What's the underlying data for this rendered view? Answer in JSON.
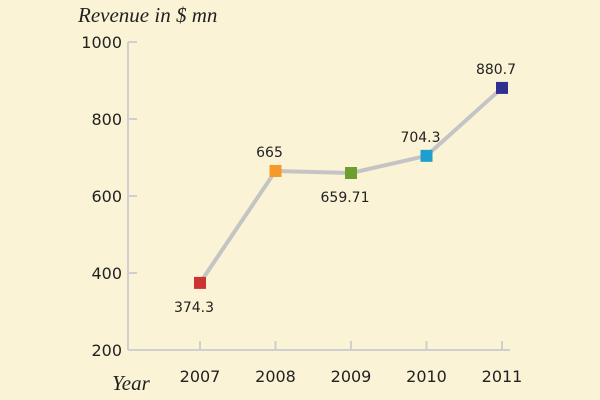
{
  "chart_data": {
    "type": "line",
    "ylabel": "Revenue in $ mn",
    "xlabel": "Year",
    "categories": [
      "2007",
      "2008",
      "2009",
      "2010",
      "2011"
    ],
    "series": [
      {
        "values": [
          374.3,
          665,
          659.71,
          704.3,
          880.7
        ],
        "labels": [
          "374.3",
          "665",
          "659.71",
          "704.3",
          "880.7"
        ],
        "line_color": "#c4c4c4",
        "marker_colors": [
          "#cc3333",
          "#f59a2a",
          "#6d9f2e",
          "#1f9fcf",
          "#2e3192"
        ]
      }
    ],
    "ylim": [
      200,
      1000
    ],
    "yticks": [
      200,
      400,
      600,
      800,
      1000
    ],
    "grid": false,
    "legend": false,
    "colors": {
      "background": "#fbf3d6",
      "axis": "#cfcfcf",
      "text": "#222222"
    }
  }
}
